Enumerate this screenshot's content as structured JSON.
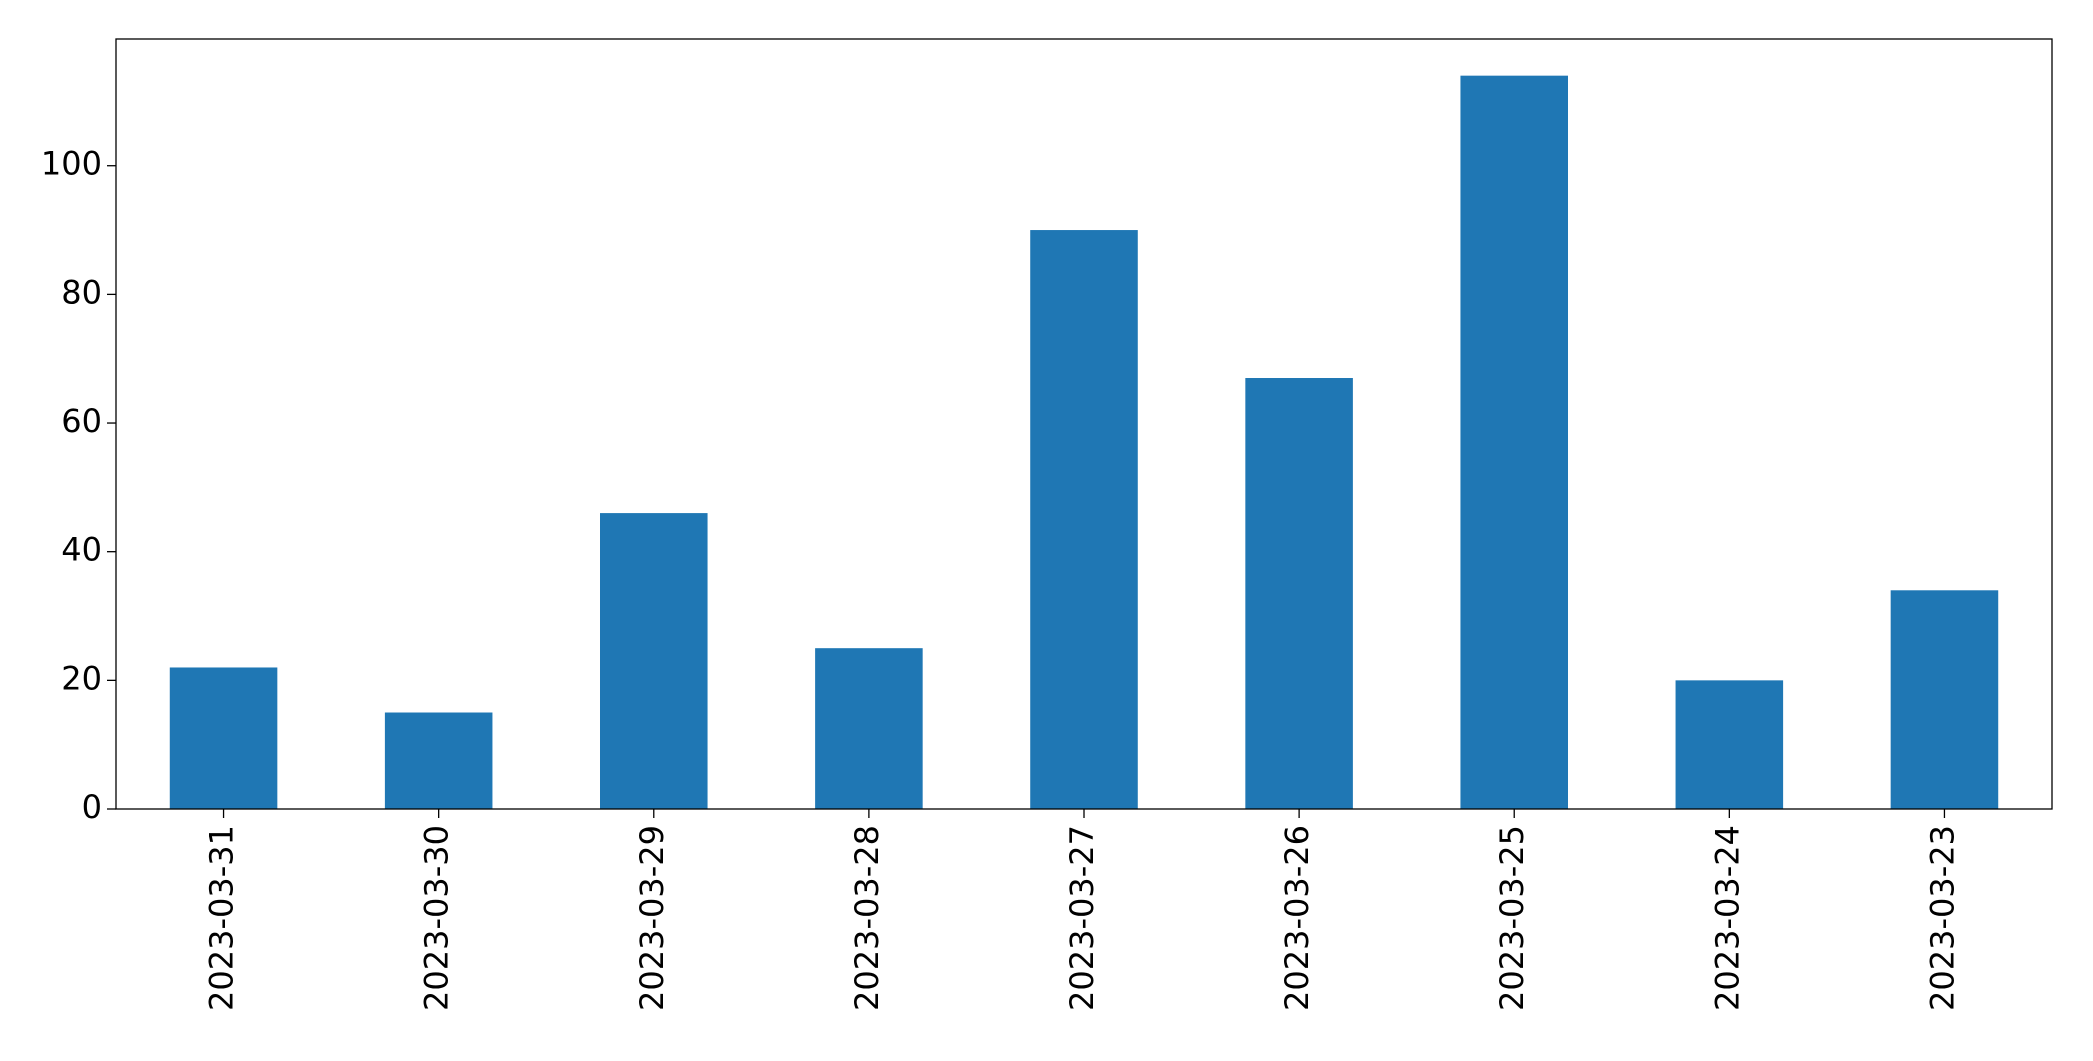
{
  "chart_data": {
    "type": "bar",
    "categories": [
      "2023-03-31",
      "2023-03-30",
      "2023-03-29",
      "2023-03-28",
      "2023-03-27",
      "2023-03-26",
      "2023-03-25",
      "2023-03-24",
      "2023-03-23"
    ],
    "values": [
      22,
      15,
      46,
      25,
      90,
      67,
      114,
      20,
      34
    ],
    "color": "#1f77b4",
    "ylim": [
      0,
      119.7
    ],
    "yticks": [
      0,
      20,
      40,
      60,
      80,
      100
    ],
    "grid": false
  }
}
